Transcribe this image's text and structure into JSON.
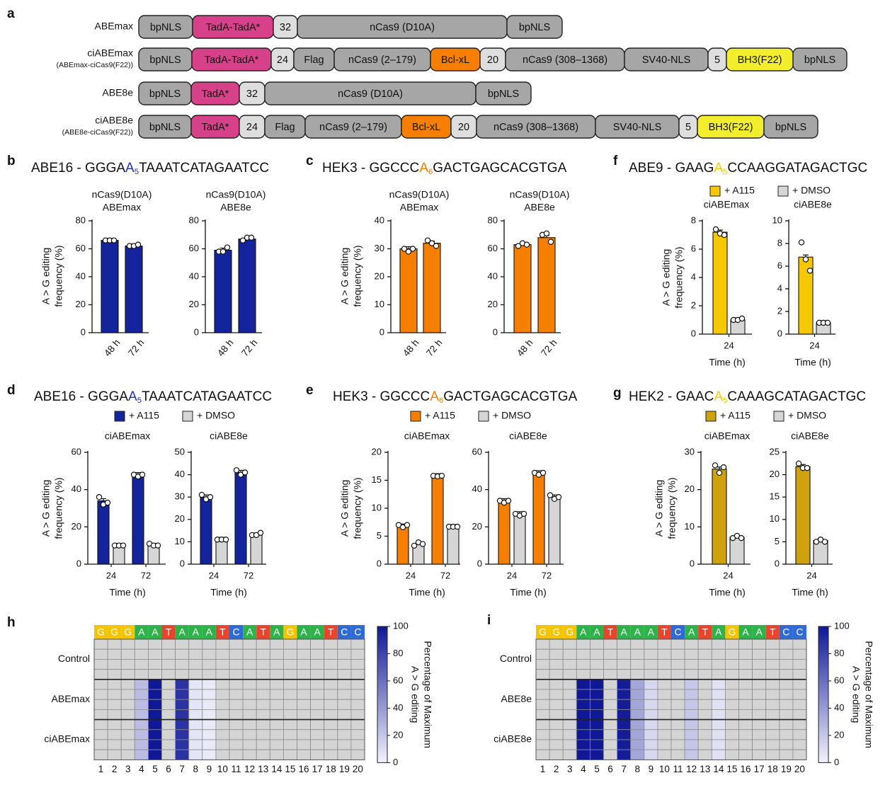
{
  "panel_letters": {
    "a": "a",
    "b": "b",
    "c": "c",
    "d": "d",
    "e": "e",
    "f": "f",
    "g": "g",
    "h": "h",
    "i": "i"
  },
  "constructs": [
    {
      "name": "ABEmax",
      "subname": "",
      "segments": [
        {
          "label": "bpNLS",
          "color": "gray"
        },
        {
          "label": "TadA-TadA*",
          "color": "pink"
        },
        {
          "label": "32",
          "color": "light"
        },
        {
          "label": "nCas9 (D10A)",
          "color": "gray"
        },
        {
          "label": "bpNLS",
          "color": "gray"
        }
      ]
    },
    {
      "name": "ciABEmax",
      "subname": "(ABEmax-ciCas9(F22))",
      "segments": [
        {
          "label": "bpNLS",
          "color": "gray"
        },
        {
          "label": "TadA-TadA*",
          "color": "pink"
        },
        {
          "label": "24",
          "color": "light"
        },
        {
          "label": "Flag",
          "color": "gray"
        },
        {
          "label": "nCas9 (2–179)",
          "color": "gray"
        },
        {
          "label": "Bcl-xL",
          "color": "orange"
        },
        {
          "label": "20",
          "color": "light"
        },
        {
          "label": "nCas9 (308–1368)",
          "color": "gray"
        },
        {
          "label": "SV40-NLS",
          "color": "gray"
        },
        {
          "label": "5",
          "color": "light"
        },
        {
          "label": "BH3(F22)",
          "color": "yellow"
        },
        {
          "label": "bpNLS",
          "color": "gray"
        }
      ]
    },
    {
      "name": "ABE8e",
      "subname": "",
      "segments": [
        {
          "label": "bpNLS",
          "color": "gray"
        },
        {
          "label": "TadA*",
          "color": "pink"
        },
        {
          "label": "32",
          "color": "light"
        },
        {
          "label": "nCas9 (D10A)",
          "color": "gray"
        },
        {
          "label": "bpNLS",
          "color": "gray"
        }
      ]
    },
    {
      "name": "ciABE8e",
      "subname": "(ABE8e-ciCas9(F22))",
      "segments": [
        {
          "label": "bpNLS",
          "color": "gray"
        },
        {
          "label": "TadA*",
          "color": "pink"
        },
        {
          "label": "24",
          "color": "light"
        },
        {
          "label": "Flag",
          "color": "gray"
        },
        {
          "label": "nCas9 (2–179)",
          "color": "gray"
        },
        {
          "label": "Bcl-xL",
          "color": "orange"
        },
        {
          "label": "20",
          "color": "light"
        },
        {
          "label": "nCas9 (308–1368)",
          "color": "gray"
        },
        {
          "label": "SV40-NLS",
          "color": "gray"
        },
        {
          "label": "5",
          "color": "light"
        },
        {
          "label": "BH3(F22)",
          "color": "yellow"
        },
        {
          "label": "bpNLS",
          "color": "gray"
        }
      ]
    }
  ],
  "colors": {
    "pink": "#d6418a",
    "orange": "#f77f00",
    "yellow": "#f2ee2e",
    "gray": "#a6a6a6",
    "light": "#dedede",
    "blue": "#13249c",
    "gold_f": "#f6c800",
    "gold_g": "#cfa10c",
    "dmso": "#d6d6d6"
  },
  "titles": {
    "b": {
      "pre": "ABE16 - GGGA",
      "base": "A",
      "sub": "5",
      "post": "TAAATCATAGAATCC",
      "base_color": "#2233aa"
    },
    "c": {
      "pre": "HEK3 - GGCCC",
      "base": "A",
      "sub": "6",
      "post": "GACTGAGCACGTGA",
      "base_color": "#f77f00"
    },
    "d": {
      "pre": "ABE16 - GGGA",
      "base": "A",
      "sub": "5",
      "post": "TAAATCATAGAATCC",
      "base_color": "#2233aa"
    },
    "e": {
      "pre": "HEK3 - GGCCC",
      "base": "A",
      "sub": "6",
      "post": "GACTGAGCACGTGA",
      "base_color": "#f77f00"
    },
    "f": {
      "pre": "ABE9 - GAAG",
      "base": "A",
      "sub": "5",
      "post": "CCAAGGATAGACTGC",
      "base_color": "#f6c800"
    },
    "g": {
      "pre": "HEK2 - GAAC",
      "base": "A",
      "sub": "5",
      "post": "CAAAGCATAGACTGC",
      "base_color": "#f6c800"
    }
  },
  "legend": {
    "a115": "+ A115",
    "dmso": "+ DMSO"
  },
  "ylabel_line1": "A > G editing",
  "ylabel_line2": "frequency (%)",
  "time_label": "Time (h)",
  "chart_data": [
    {
      "id": "b-left",
      "type": "bar",
      "title": "nCas9(D10A)",
      "subtitle": "ABEmax",
      "categories": [
        "48 h",
        "72 h"
      ],
      "ylim": [
        0,
        80
      ],
      "yticks": [
        0,
        20,
        40,
        60,
        80
      ],
      "series": [
        {
          "name": "",
          "values": [
            66,
            62
          ]
        }
      ],
      "points": [
        [
          66,
          66,
          66
        ],
        [
          62,
          62,
          63
        ]
      ]
    },
    {
      "id": "b-right",
      "type": "bar",
      "title": "nCas9(D10A)",
      "subtitle": "ABE8e",
      "categories": [
        "48 h",
        "72 h"
      ],
      "ylim": [
        0,
        80
      ],
      "yticks": [
        0,
        20,
        40,
        60,
        80
      ],
      "series": [
        {
          "name": "",
          "values": [
            59,
            67
          ]
        }
      ],
      "points": [
        [
          58,
          58,
          61
        ],
        [
          66,
          68,
          68
        ]
      ]
    },
    {
      "id": "c-left",
      "type": "bar",
      "title": "nCas9(D10A)",
      "subtitle": "ABEmax",
      "categories": [
        "48 h",
        "72 h"
      ],
      "ylim": [
        0,
        40
      ],
      "yticks": [
        0,
        10,
        20,
        30,
        40
      ],
      "series": [
        {
          "name": "",
          "values": [
            30,
            32
          ]
        }
      ],
      "points": [
        [
          30,
          29,
          30
        ],
        [
          33,
          32,
          31
        ]
      ]
    },
    {
      "id": "c-right",
      "type": "bar",
      "title": "nCas9(D10A)",
      "subtitle": "ABE8e",
      "categories": [
        "48 h",
        "72 h"
      ],
      "ylim": [
        0,
        80
      ],
      "yticks": [
        0,
        20,
        40,
        60,
        80
      ],
      "series": [
        {
          "name": "",
          "values": [
            63,
            68
          ]
        }
      ],
      "points": [
        [
          62,
          64,
          63
        ],
        [
          70,
          71,
          65
        ]
      ]
    },
    {
      "id": "f-left",
      "type": "bar",
      "title": "ciABEmax",
      "categories": [
        "24"
      ],
      "xlabel": "Time (h)",
      "ylim": [
        0,
        8
      ],
      "yticks": [
        0,
        2,
        4,
        6,
        8
      ],
      "series": [
        {
          "name": "+ A115",
          "values": [
            7.2
          ]
        },
        {
          "name": "+ DMSO",
          "values": [
            1.0
          ]
        }
      ],
      "points": [
        [
          [
            7.4,
            7.1,
            7.0
          ]
        ],
        [
          [
            1.0,
            1.0,
            1.1
          ]
        ]
      ]
    },
    {
      "id": "f-right",
      "type": "bar",
      "title": "ciABE8e",
      "categories": [
        "24"
      ],
      "xlabel": "Time (h)",
      "ylim": [
        0,
        10
      ],
      "yticks": [
        0,
        2,
        4,
        6,
        8,
        10
      ],
      "series": [
        {
          "name": "+ A115",
          "values": [
            6.8
          ]
        },
        {
          "name": "+ DMSO",
          "values": [
            1.0
          ]
        }
      ],
      "points": [
        [
          [
            8.1,
            6.6,
            5.6
          ]
        ],
        [
          [
            1.0,
            1.0,
            1.0
          ]
        ]
      ]
    },
    {
      "id": "d-left",
      "type": "bar",
      "title": "ciABEmax",
      "categories": [
        "24",
        "72"
      ],
      "xlabel": "Time (h)",
      "ylim": [
        0,
        60
      ],
      "yticks": [
        0,
        20,
        40,
        60
      ],
      "series": [
        {
          "name": "+ A115",
          "values": [
            34,
            48
          ]
        },
        {
          "name": "+ DMSO",
          "values": [
            10,
            10
          ]
        }
      ],
      "points": [
        [
          [
            36,
            32,
            33
          ],
          [
            48,
            47,
            48
          ]
        ],
        [
          [
            10,
            10,
            10
          ],
          [
            11,
            10,
            10
          ]
        ]
      ]
    },
    {
      "id": "d-right",
      "type": "bar",
      "title": "ciABE8e",
      "categories": [
        "24",
        "72"
      ],
      "xlabel": "Time (h)",
      "ylim": [
        0,
        50
      ],
      "yticks": [
        0,
        10,
        20,
        30,
        40,
        50
      ],
      "series": [
        {
          "name": "+ A115",
          "values": [
            30,
            41
          ]
        },
        {
          "name": "+ DMSO",
          "values": [
            11,
            13
          ]
        }
      ],
      "points": [
        [
          [
            31,
            29,
            30
          ],
          [
            42,
            40,
            41
          ]
        ],
        [
          [
            11,
            11,
            11
          ],
          [
            13,
            13,
            14
          ]
        ]
      ]
    },
    {
      "id": "e-left",
      "type": "bar",
      "title": "ciABEmax",
      "categories": [
        "24",
        "72"
      ],
      "xlabel": "Time (h)",
      "ylim": [
        0,
        20
      ],
      "yticks": [
        0,
        5,
        10,
        15,
        20
      ],
      "series": [
        {
          "name": "+ A115",
          "values": [
            6.8,
            15.8
          ]
        },
        {
          "name": "+ DMSO",
          "values": [
            3.6,
            6.7
          ]
        }
      ],
      "points": [
        [
          [
            7.0,
            6.6,
            7.0
          ],
          [
            15.8,
            15.7,
            15.8
          ]
        ],
        [
          [
            3.3,
            3.9,
            3.6
          ],
          [
            6.7,
            6.7,
            6.7
          ]
        ]
      ]
    },
    {
      "id": "e-right",
      "type": "bar",
      "title": "ciABE8e",
      "categories": [
        "24",
        "72"
      ],
      "xlabel": "Time (h)",
      "ylim": [
        0,
        60
      ],
      "yticks": [
        0,
        20,
        40,
        60
      ],
      "series": [
        {
          "name": "+ A115",
          "values": [
            34,
            49
          ]
        },
        {
          "name": "+ DMSO",
          "values": [
            27,
            36
          ]
        }
      ],
      "points": [
        [
          [
            34,
            33,
            34
          ],
          [
            49,
            48,
            49
          ]
        ],
        [
          [
            27,
            26,
            27
          ],
          [
            37,
            35,
            36
          ]
        ]
      ]
    },
    {
      "id": "g-left",
      "type": "bar",
      "title": "ciABEmax",
      "categories": [
        "24"
      ],
      "xlabel": "Time (h)",
      "ylim": [
        0,
        30
      ],
      "yticks": [
        0,
        10,
        20,
        30
      ],
      "series": [
        {
          "name": "+ A115",
          "values": [
            25.5
          ]
        },
        {
          "name": "+ DMSO",
          "values": [
            7.2
          ]
        }
      ],
      "points": [
        [
          [
            26.5,
            24.5,
            26
          ]
        ],
        [
          [
            7.0,
            7.6,
            7.0
          ]
        ]
      ]
    },
    {
      "id": "g-right",
      "type": "bar",
      "title": "ciABE8e",
      "categories": [
        "24"
      ],
      "xlabel": "Time (h)",
      "ylim": [
        0,
        25
      ],
      "yticks": [
        0,
        5,
        10,
        15,
        20,
        25
      ],
      "series": [
        {
          "name": "+ A115",
          "values": [
            21.8
          ]
        },
        {
          "name": "+ DMSO",
          "values": [
            5.3
          ]
        }
      ],
      "points": [
        [
          [
            22.5,
            21.5,
            21.5
          ]
        ],
        [
          [
            5.0,
            5.5,
            5.0
          ]
        ]
      ]
    },
    {
      "id": "h",
      "type": "heatmap",
      "sequence": [
        "G",
        "G",
        "G",
        "A",
        "A",
        "T",
        "A",
        "A",
        "A",
        "T",
        "C",
        "A",
        "T",
        "A",
        "G",
        "A",
        "A",
        "T",
        "C",
        "C"
      ],
      "positions": [
        1,
        2,
        3,
        4,
        5,
        6,
        7,
        8,
        9,
        10,
        11,
        12,
        13,
        14,
        15,
        16,
        17,
        18,
        19,
        20
      ],
      "groups": [
        "Control",
        "ABEmax",
        "ciABEmax"
      ],
      "values": {
        "4": 25,
        "5": 100,
        "7": 88,
        "8": 6,
        "9": 4
      },
      "colorbar_ticks": [
        0,
        20,
        40,
        60,
        80,
        100
      ],
      "colorbar_label_1": "Percentage of Maximum",
      "colorbar_label_2": "A > G editing"
    },
    {
      "id": "i",
      "type": "heatmap",
      "sequence": [
        "G",
        "G",
        "G",
        "A",
        "A",
        "T",
        "A",
        "A",
        "A",
        "T",
        "C",
        "A",
        "T",
        "A",
        "G",
        "A",
        "A",
        "T",
        "C",
        "C"
      ],
      "positions": [
        1,
        2,
        3,
        4,
        5,
        6,
        7,
        8,
        9,
        10,
        11,
        12,
        13,
        14,
        15,
        16,
        17,
        18,
        19,
        20
      ],
      "groups": [
        "Control",
        "ABE8e",
        "ciABE8e"
      ],
      "values": {
        "4": 100,
        "5": 100,
        "7": 98,
        "8": 35,
        "9": 12,
        "12": 20,
        "14": 8
      },
      "colorbar_ticks": [
        0,
        20,
        40,
        60,
        80,
        100
      ],
      "colorbar_label_1": "Percentage of Maximum",
      "colorbar_label_2": "A > G editing"
    }
  ]
}
